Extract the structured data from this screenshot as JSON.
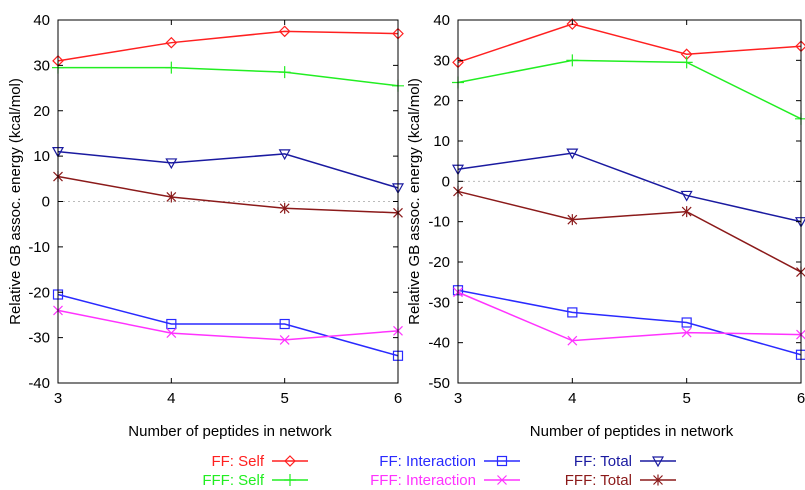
{
  "chart_data": [
    {
      "type": "line",
      "xlabel": "Number of peptides in network",
      "ylabel": "Relative GB assoc. energy (kcal/mol)",
      "x": [
        3,
        4,
        5,
        6
      ],
      "xlim": [
        3,
        6
      ],
      "ylim": [
        -40,
        40
      ],
      "yticks": [
        40,
        30,
        20,
        10,
        0,
        -10,
        -20,
        -30,
        -40
      ],
      "xticks": [
        3,
        4,
        5,
        6
      ],
      "zero_line": "dotted",
      "series": [
        {
          "name": "FF: Self",
          "marker": "diamond",
          "color": "#ff2020",
          "values": [
            31,
            35,
            37.5,
            37
          ]
        },
        {
          "name": "FFF: Self",
          "marker": "plus",
          "color": "#22ee22",
          "values": [
            29.5,
            29.5,
            28.5,
            25.5
          ]
        },
        {
          "name": "FF: Total",
          "marker": "triangle-down",
          "color": "#1a1aa0",
          "values": [
            11,
            8.5,
            10.5,
            3
          ]
        },
        {
          "name": "FFF: Total",
          "marker": "star",
          "color": "#8b1a1a",
          "values": [
            5.5,
            1,
            -1.5,
            -2.5
          ]
        },
        {
          "name": "FF: Interaction",
          "marker": "square",
          "color": "#2a2aff",
          "values": [
            -20.5,
            -27,
            -27,
            -34
          ]
        },
        {
          "name": "FFF: Interaction",
          "marker": "x",
          "color": "#ff33ff",
          "values": [
            -24,
            -29,
            -30.5,
            -28.5
          ]
        }
      ]
    },
    {
      "type": "line",
      "xlabel": "Number of peptides in network",
      "ylabel": "Relative GB assoc. energy (kcal/mol)",
      "x": [
        3,
        4,
        5,
        6
      ],
      "xlim": [
        3,
        6
      ],
      "ylim": [
        -50,
        40
      ],
      "yticks": [
        40,
        30,
        20,
        10,
        0,
        -10,
        -20,
        -30,
        -40,
        -50
      ],
      "xticks": [
        3,
        4,
        5,
        6
      ],
      "zero_line": "dotted",
      "series": [
        {
          "name": "FF: Self",
          "marker": "diamond",
          "color": "#ff2020",
          "values": [
            29.5,
            39,
            31.5,
            33.5
          ]
        },
        {
          "name": "FFF: Self",
          "marker": "plus",
          "color": "#22ee22",
          "values": [
            24.5,
            30,
            29.5,
            15.5
          ]
        },
        {
          "name": "FF: Total",
          "marker": "triangle-down",
          "color": "#1a1aa0",
          "values": [
            3,
            7,
            -3.5,
            -10
          ]
        },
        {
          "name": "FFF: Total",
          "marker": "star",
          "color": "#8b1a1a",
          "values": [
            -2.5,
            -9.5,
            -7.5,
            -22.5
          ]
        },
        {
          "name": "FF: Interaction",
          "marker": "square",
          "color": "#2a2aff",
          "values": [
            -27,
            -32.5,
            -35,
            -43
          ]
        },
        {
          "name": "FFF: Interaction",
          "marker": "x",
          "color": "#ff33ff",
          "values": [
            -27.5,
            -39.5,
            -37.5,
            -38
          ]
        }
      ]
    }
  ],
  "legend": {
    "placement": "bottom",
    "entries": [
      {
        "label": "FF: Self",
        "marker": "diamond",
        "color": "#ff2020"
      },
      {
        "label": "FF: Interaction",
        "marker": "square",
        "color": "#2a2aff"
      },
      {
        "label": "FF: Total",
        "marker": "triangle-down",
        "color": "#1a1aa0"
      },
      {
        "label": "FFF: Self",
        "marker": "plus",
        "color": "#22ee22"
      },
      {
        "label": "FFF: Interaction",
        "marker": "x",
        "color": "#ff33ff"
      },
      {
        "label": "FFF: Total",
        "marker": "star",
        "color": "#8b1a1a"
      }
    ]
  }
}
